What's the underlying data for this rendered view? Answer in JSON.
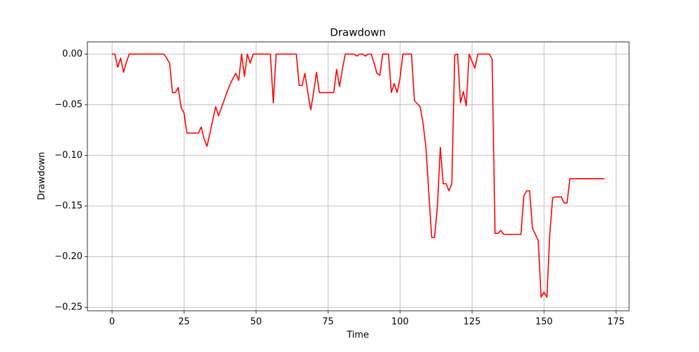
{
  "chart_data": {
    "type": "line",
    "title": "Drawdown",
    "x_label": "Time",
    "y_label": "Drawdown",
    "x": [
      0,
      1,
      2,
      3,
      4,
      5,
      6,
      7,
      8,
      9,
      10,
      11,
      12,
      13,
      14,
      15,
      16,
      17,
      18,
      19,
      20,
      21,
      22,
      23,
      24,
      25,
      26,
      27,
      28,
      29,
      30,
      31,
      32,
      33,
      34,
      35,
      36,
      37,
      38,
      39,
      40,
      41,
      42,
      43,
      44,
      45,
      46,
      47,
      48,
      49,
      50,
      51,
      52,
      53,
      54,
      55,
      56,
      57,
      58,
      59,
      60,
      61,
      62,
      63,
      64,
      65,
      66,
      67,
      68,
      69,
      70,
      71,
      72,
      73,
      74,
      75,
      76,
      77,
      78,
      79,
      80,
      81,
      82,
      83,
      84,
      85,
      86,
      87,
      88,
      89,
      90,
      91,
      92,
      93,
      94,
      95,
      96,
      97,
      98,
      99,
      100,
      101,
      102,
      103,
      104,
      105,
      106,
      107,
      108,
      109,
      110,
      111,
      112,
      113,
      114,
      115,
      116,
      117,
      118,
      119,
      120,
      121,
      122,
      123,
      124,
      125,
      126,
      127,
      128,
      129,
      130,
      131,
      132,
      133,
      134,
      135,
      136,
      137,
      138,
      139,
      140,
      141,
      142,
      143,
      144,
      145,
      146,
      147,
      148,
      149,
      150,
      151,
      152,
      153,
      154,
      155,
      156,
      157,
      158,
      159,
      160,
      161,
      162,
      163,
      164,
      165,
      166,
      167,
      168,
      169,
      170,
      171
    ],
    "series": [
      {
        "color": "#ff0000",
        "values": [
          0,
          0,
          -0.013,
          -0.004,
          -0.018,
          -0.008,
          0,
          0,
          0,
          0,
          0,
          0,
          0,
          0,
          0,
          0,
          0,
          0,
          0,
          -0.004,
          -0.009,
          -0.038,
          -0.038,
          -0.033,
          -0.053,
          -0.058,
          -0.078,
          -0.078,
          -0.078,
          -0.078,
          -0.078,
          -0.072,
          -0.084,
          -0.091,
          -0.078,
          -0.065,
          -0.052,
          -0.061,
          -0.053,
          -0.045,
          -0.037,
          -0.03,
          -0.024,
          -0.019,
          -0.026,
          0,
          -0.022,
          0,
          -0.009,
          0,
          0,
          0,
          0,
          0,
          0,
          0,
          -0.048,
          0,
          0,
          0,
          0,
          0,
          0,
          0,
          0,
          -0.031,
          -0.031,
          -0.019,
          -0.038,
          -0.055,
          -0.038,
          -0.018,
          -0.038,
          -0.038,
          -0.038,
          -0.038,
          -0.038,
          -0.038,
          -0.015,
          -0.032,
          -0.015,
          0,
          0,
          0,
          0,
          -0.002,
          0,
          0,
          -0.002,
          0,
          0,
          -0.009,
          -0.019,
          -0.021,
          0,
          0,
          0,
          -0.038,
          -0.029,
          -0.038,
          -0.024,
          0,
          0,
          0,
          0,
          -0.046,
          -0.049,
          -0.052,
          -0.068,
          -0.092,
          -0.137,
          -0.181,
          -0.181,
          -0.15,
          -0.092,
          -0.128,
          -0.128,
          -0.135,
          -0.128,
          -0.001,
          0,
          -0.048,
          -0.037,
          -0.051,
          0,
          -0.007,
          -0.014,
          0,
          0,
          0,
          0,
          0,
          -0.005,
          -0.177,
          -0.177,
          -0.174,
          -0.178,
          -0.178,
          -0.178,
          -0.178,
          -0.178,
          -0.178,
          -0.178,
          -0.14,
          -0.135,
          -0.135,
          -0.172,
          -0.178,
          -0.184,
          -0.24,
          -0.235,
          -0.24,
          -0.178,
          -0.142,
          -0.141,
          -0.141,
          -0.141,
          -0.147,
          -0.147,
          -0.123,
          -0.123,
          -0.123,
          -0.123,
          -0.123,
          -0.123,
          -0.123,
          -0.123,
          -0.123,
          -0.123,
          -0.123,
          -0.123,
          -0.123
        ]
      }
    ],
    "xlim": [
      -8.55,
      179.55
    ],
    "xticks": [
      0,
      25,
      50,
      75,
      100,
      125,
      150,
      175
    ],
    "ylim": [
      -0.2534,
      0.012
    ],
    "yticks": [
      {
        "value": -0.25,
        "label": "−0.25"
      },
      {
        "value": -0.2,
        "label": "−0.20"
      },
      {
        "value": -0.15,
        "label": "−0.15"
      },
      {
        "value": -0.1,
        "label": "−0.10"
      },
      {
        "value": -0.05,
        "label": "−0.05"
      },
      {
        "value": 0,
        "label": "0.00"
      }
    ],
    "grid": true
  }
}
